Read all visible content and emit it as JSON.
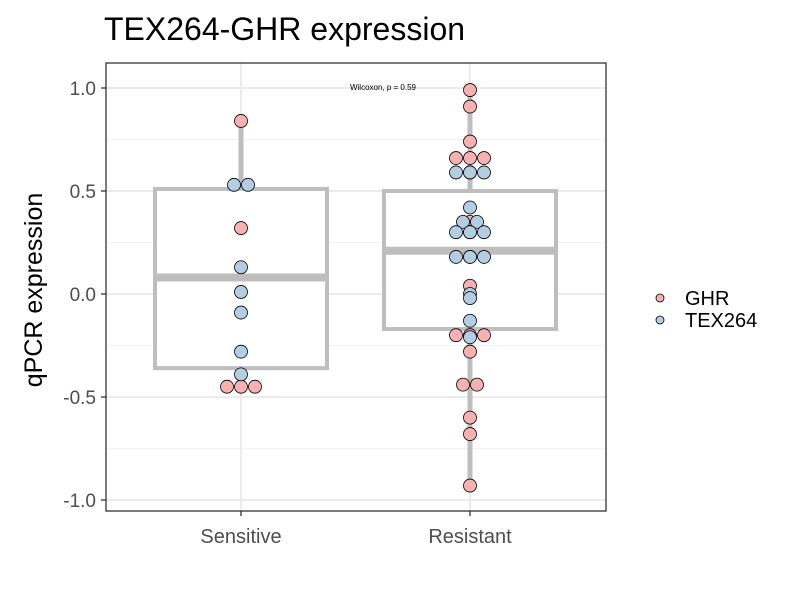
{
  "chart_data": {
    "type": "box+dotplot",
    "title": "TEX264-GHR expression",
    "xlabel": "",
    "ylabel": "qPCR expression",
    "ylim": [
      -1.05,
      1.1
    ],
    "yticks": [
      "1.0",
      "0.5",
      "0.0",
      "-0.5",
      "-1.0"
    ],
    "ytick_values": [
      1.0,
      0.5,
      0.0,
      -0.5,
      -1.0
    ],
    "categories": [
      "Sensitive",
      "Resistant"
    ],
    "annotation": "Wilcoxon, p = 0.59",
    "grid": true,
    "legend_position": "right",
    "box_color": "#bebebe",
    "boxes": [
      {
        "category": "Sensitive",
        "whisker_low": -0.45,
        "q1": -0.36,
        "median": 0.08,
        "q3": 0.51,
        "whisker_high": 0.84
      },
      {
        "category": "Resistant",
        "whisker_low": -0.93,
        "q1": -0.17,
        "median": 0.21,
        "q3": 0.5,
        "whisker_high": 0.99
      }
    ],
    "series": [
      {
        "name": "GHR",
        "color": "#f8b1b1",
        "points": [
          {
            "category": "Sensitive",
            "values": [
              0.84,
              0.32,
              -0.45,
              -0.45,
              -0.45
            ]
          },
          {
            "category": "Resistant",
            "values": [
              0.99,
              0.91,
              0.74,
              0.66,
              0.66,
              0.66,
              0.59,
              0.35,
              0.3,
              0.18,
              0.04,
              -0.2,
              -0.2,
              -0.2,
              -0.28,
              -0.44,
              -0.44,
              -0.6,
              -0.68,
              -0.93
            ]
          }
        ]
      },
      {
        "name": "TEX264",
        "color": "#b3cde3",
        "points": [
          {
            "category": "Sensitive",
            "values": [
              0.53,
              0.53,
              0.13,
              0.01,
              -0.09,
              -0.28,
              -0.39
            ]
          },
          {
            "category": "Resistant",
            "values": [
              0.59,
              0.59,
              0.59,
              0.42,
              0.35,
              0.35,
              0.3,
              0.3,
              0.3,
              0.18,
              0.18,
              0.18,
              0.0,
              -0.02,
              -0.13,
              -0.21
            ]
          }
        ]
      }
    ],
    "legend": [
      {
        "label": "GHR",
        "color": "#f8b1b1"
      },
      {
        "label": "TEX264",
        "color": "#b3cde3"
      }
    ]
  }
}
